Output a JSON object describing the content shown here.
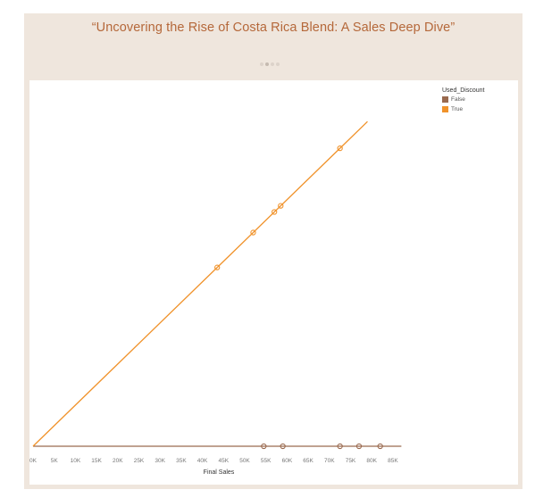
{
  "story": {
    "title": "“Uncovering the Rise of Costa Rica Blend: A Sales Deep Dive”",
    "nav_dots": 4,
    "active_dot": 1
  },
  "legend": {
    "title": "Used_Discount",
    "items": [
      {
        "label": "False",
        "color": "#9a6a4f"
      },
      {
        "label": "True",
        "color": "#f0922a"
      }
    ]
  },
  "chart_data": {
    "type": "scatter",
    "xlabel": "Final Sales",
    "ylabel": "",
    "x_ticks": [
      "0K",
      "5K",
      "10K",
      "15K",
      "20K",
      "25K",
      "30K",
      "35K",
      "40K",
      "45K",
      "50K",
      "55K",
      "60K",
      "65K",
      "70K",
      "75K",
      "80K",
      "85K"
    ],
    "xlim": [
      0,
      87000
    ],
    "series": [
      {
        "name": "False",
        "color": "#9a6a4f",
        "points": [
          {
            "x": 54500,
            "y": 0
          },
          {
            "x": 59000,
            "y": 0
          },
          {
            "x": 72500,
            "y": 0
          },
          {
            "x": 77000,
            "y": 0
          },
          {
            "x": 82000,
            "y": 0
          }
        ]
      },
      {
        "name": "True",
        "color": "#f0922a",
        "points": [
          {
            "x": 43500,
            "y": 43500
          },
          {
            "x": 52000,
            "y": 52000
          },
          {
            "x": 57000,
            "y": 57000
          },
          {
            "x": 58500,
            "y": 58500
          },
          {
            "x": 72500,
            "y": 72500
          }
        ]
      }
    ]
  }
}
